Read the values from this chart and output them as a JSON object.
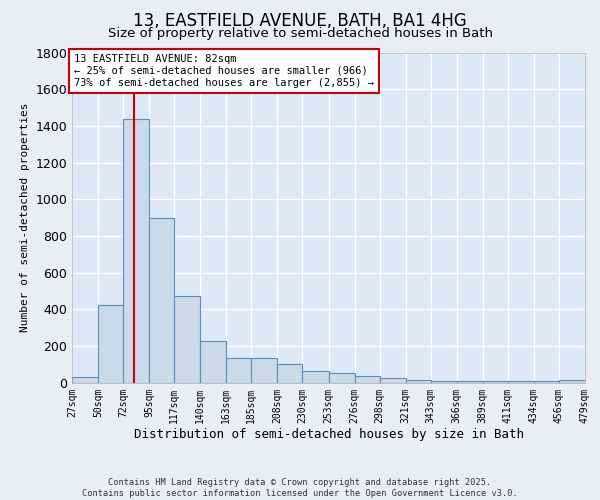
{
  "title": "13, EASTFIELD AVENUE, BATH, BA1 4HG",
  "subtitle": "Size of property relative to semi-detached houses in Bath",
  "xlabel": "Distribution of semi-detached houses by size in Bath",
  "ylabel": "Number of semi-detached properties",
  "bin_edges": [
    27,
    50,
    72,
    95,
    117,
    140,
    163,
    185,
    208,
    230,
    253,
    276,
    298,
    321,
    343,
    366,
    389,
    411,
    434,
    456,
    479
  ],
  "bar_heights": [
    30,
    425,
    1440,
    900,
    470,
    225,
    135,
    135,
    100,
    65,
    50,
    35,
    25,
    15,
    10,
    10,
    10,
    10,
    10,
    15
  ],
  "bar_color": "#ccd9e8",
  "bar_edgecolor": "#5b8db8",
  "property_size": 82,
  "property_line_color": "#cc0000",
  "annotation_text": "13 EASTFIELD AVENUE: 82sqm\n← 25% of semi-detached houses are smaller (966)\n73% of semi-detached houses are larger (2,855) →",
  "annotation_box_color": "#cc0000",
  "ylim": [
    0,
    1800
  ],
  "plot_bg_color": "#dce8f5",
  "grid_color": "#ffffff",
  "fig_bg_color": "#e8eef5",
  "footer_text": "Contains HM Land Registry data © Crown copyright and database right 2025.\nContains public sector information licensed under the Open Government Licence v3.0.",
  "title_fontsize": 12,
  "subtitle_fontsize": 9.5,
  "tick_label_fontsize": 7,
  "ylabel_fontsize": 8,
  "xlabel_fontsize": 9
}
